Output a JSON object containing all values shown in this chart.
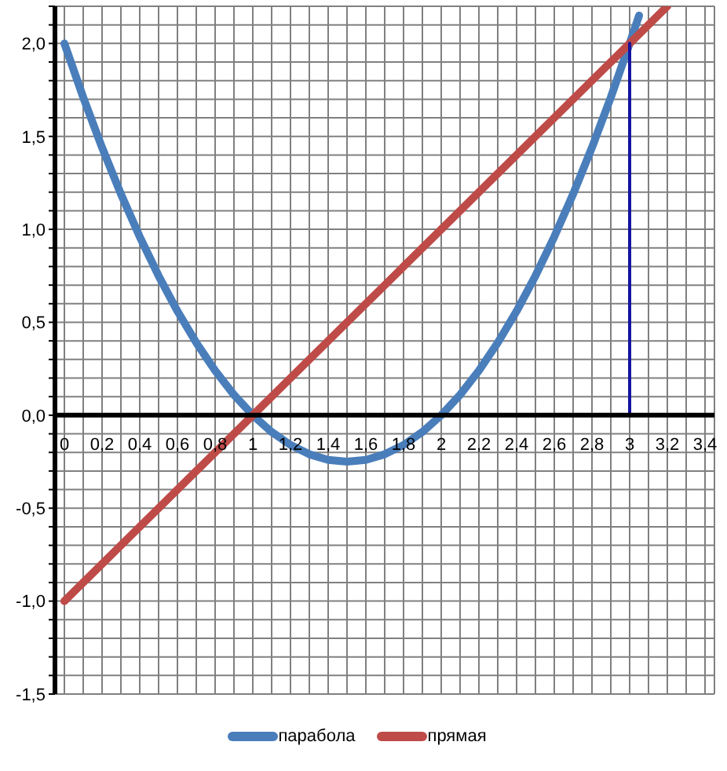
{
  "chart_data": {
    "type": "line",
    "series": [
      {
        "name": "парабола",
        "color": "#4a7ebb",
        "x": [
          0,
          0.1,
          0.2,
          0.3,
          0.4,
          0.5,
          0.6,
          0.7,
          0.8,
          0.9,
          1,
          1.1,
          1.2,
          1.3,
          1.4,
          1.5,
          1.6,
          1.7,
          1.8,
          1.9,
          2,
          2.1,
          2.2,
          2.3,
          2.4,
          2.5,
          2.6,
          2.7,
          2.8,
          2.9,
          3,
          3.05
        ],
        "values": [
          2,
          1.71,
          1.44,
          1.19,
          0.96,
          0.75,
          0.56,
          0.39,
          0.24,
          0.11,
          0,
          -0.09,
          -0.16,
          -0.21,
          -0.24,
          -0.25,
          -0.24,
          -0.21,
          -0.16,
          -0.09,
          0,
          0.11,
          0.24,
          0.39,
          0.56,
          0.75,
          0.96,
          1.19,
          1.44,
          1.71,
          2,
          2.15
        ]
      },
      {
        "name": "прямая",
        "color": "#be4b48",
        "x": [
          0,
          1,
          2,
          3,
          3.2
        ],
        "values": [
          -1,
          0,
          1,
          2,
          2.2
        ]
      },
      {
        "color": "#1414a0",
        "x": [
          3,
          3
        ],
        "values": [
          0,
          2
        ]
      }
    ],
    "xlim": [
      -0.05,
      3.45
    ],
    "xticks": [
      {
        "value": 0,
        "label": "0"
      },
      {
        "value": 0.1,
        "label": null
      },
      {
        "value": 0.2,
        "label": "0,2"
      },
      {
        "value": 0.3,
        "label": null
      },
      {
        "value": 0.4,
        "label": "0,4"
      },
      {
        "value": 0.5,
        "label": null
      },
      {
        "value": 0.6,
        "label": "0,6"
      },
      {
        "value": 0.7,
        "label": null
      },
      {
        "value": 0.8,
        "label": "0,8"
      },
      {
        "value": 0.9,
        "label": null
      },
      {
        "value": 1,
        "label": "1"
      },
      {
        "value": 1.1,
        "label": null
      },
      {
        "value": 1.2,
        "label": "1,2"
      },
      {
        "value": 1.3,
        "label": null
      },
      {
        "value": 1.4,
        "label": "1,4"
      },
      {
        "value": 1.5,
        "label": null
      },
      {
        "value": 1.6,
        "label": "1,6"
      },
      {
        "value": 1.7,
        "label": null
      },
      {
        "value": 1.8,
        "label": "1,8"
      },
      {
        "value": 1.9,
        "label": null
      },
      {
        "value": 2,
        "label": "2"
      },
      {
        "value": 2.1,
        "label": null
      },
      {
        "value": 2.2,
        "label": "2,2"
      },
      {
        "value": 2.3,
        "label": null
      },
      {
        "value": 2.4,
        "label": "2,4"
      },
      {
        "value": 2.5,
        "label": null
      },
      {
        "value": 2.6,
        "label": "2,6"
      },
      {
        "value": 2.7,
        "label": null
      },
      {
        "value": 2.8,
        "label": "2,8"
      },
      {
        "value": 2.9,
        "label": null
      },
      {
        "value": 3,
        "label": "3"
      },
      {
        "value": 3.1,
        "label": null
      },
      {
        "value": 3.2,
        "label": "3,2"
      },
      {
        "value": 3.3,
        "label": null
      },
      {
        "value": 3.4,
        "label": "3,4"
      }
    ],
    "ylim": [
      -1.5,
      2.2
    ],
    "yticks": [
      {
        "value": -1.5,
        "label": "-1,5"
      },
      {
        "value": -1.4,
        "label": null
      },
      {
        "value": -1.3,
        "label": null
      },
      {
        "value": -1.2,
        "label": null
      },
      {
        "value": -1.1,
        "label": null
      },
      {
        "value": -1,
        "label": "-1,0"
      },
      {
        "value": -0.9,
        "label": null
      },
      {
        "value": -0.8,
        "label": null
      },
      {
        "value": -0.7,
        "label": null
      },
      {
        "value": -0.6,
        "label": null
      },
      {
        "value": -0.5,
        "label": "-0,5"
      },
      {
        "value": -0.4,
        "label": null
      },
      {
        "value": -0.3,
        "label": null
      },
      {
        "value": -0.2,
        "label": null
      },
      {
        "value": -0.1,
        "label": null
      },
      {
        "value": 0,
        "label": "0,0"
      },
      {
        "value": 0.1,
        "label": null
      },
      {
        "value": 0.2,
        "label": null
      },
      {
        "value": 0.3,
        "label": null
      },
      {
        "value": 0.4,
        "label": null
      },
      {
        "value": 0.5,
        "label": "0,5"
      },
      {
        "value": 0.6,
        "label": null
      },
      {
        "value": 0.7,
        "label": null
      },
      {
        "value": 0.8,
        "label": null
      },
      {
        "value": 0.9,
        "label": null
      },
      {
        "value": 1,
        "label": "1,0"
      },
      {
        "value": 1.1,
        "label": null
      },
      {
        "value": 1.2,
        "label": null
      },
      {
        "value": 1.3,
        "label": null
      },
      {
        "value": 1.4,
        "label": null
      },
      {
        "value": 1.5,
        "label": "1,5"
      },
      {
        "value": 1.6,
        "label": null
      },
      {
        "value": 1.7,
        "label": null
      },
      {
        "value": 1.8,
        "label": null
      },
      {
        "value": 1.9,
        "label": null
      },
      {
        "value": 2,
        "label": "2,0"
      },
      {
        "value": 2.1,
        "label": null
      },
      {
        "value": 2.2,
        "label": null
      }
    ],
    "grid": true,
    "legend": "bottom",
    "marker": "none"
  }
}
